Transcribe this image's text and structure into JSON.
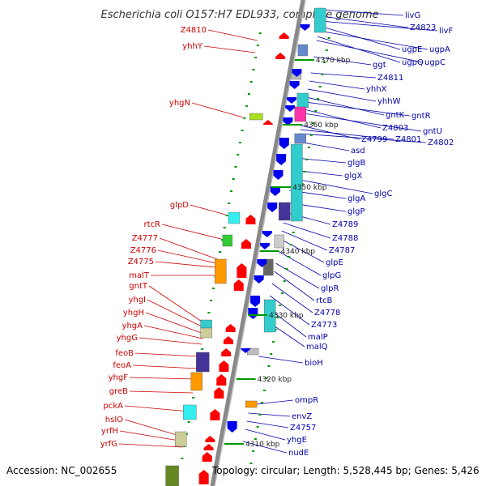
{
  "title": "Escherichia coli O157:H7 EDL933, complete genome",
  "footer": {
    "accession": "Accession: NC_002655",
    "summary": "Topology: circular; Length: 5,528,445 bp; Genes: 5,426"
  },
  "colors": {
    "backbone": "#888888",
    "forward_label": "#cc0000",
    "reverse_label": "#0000aa",
    "tick": "#009900",
    "forward_arrow": "#ff0000",
    "reverse_arrow": "#0000ee"
  },
  "kbp_ticks": [
    "4370 kbp",
    "4360 kbp",
    "4350 kbp",
    "4340 kbp",
    "4330 kbp",
    "4320 kbp",
    "4310 kbp"
  ],
  "left_labels": [
    "Z4810",
    "yhhY",
    "yhgN",
    "glpD",
    "rtcR",
    "Z4777",
    "Z4776",
    "Z4775",
    "malT",
    "gntT",
    "yhgI",
    "yhgH",
    "yhgA",
    "yhgG",
    "feoB",
    "feoA",
    "yhgF",
    "greB",
    "pckA",
    "hslO",
    "yrfH",
    "yrfG"
  ],
  "right_labels": [
    "livG",
    "Z4823",
    "livF",
    "ugpE",
    "ugpA",
    "ugpQ",
    "ugpC",
    "ggt",
    "Z4811",
    "yhhX",
    "yhhW",
    "gntK",
    "gntR",
    "Z4803",
    "gntU",
    "Z4799",
    "Z4801",
    "Z4802",
    "asd",
    "glgB",
    "glgX",
    "glgC",
    "glgA",
    "glgP",
    "Z4789",
    "Z4788",
    "Z4787",
    "glpE",
    "glpG",
    "glpR",
    "rtcB",
    "Z4778",
    "Z4773",
    "malP",
    "malQ",
    "bioH",
    "ompR",
    "envZ",
    "Z4757",
    "yhgE",
    "nudE"
  ]
}
